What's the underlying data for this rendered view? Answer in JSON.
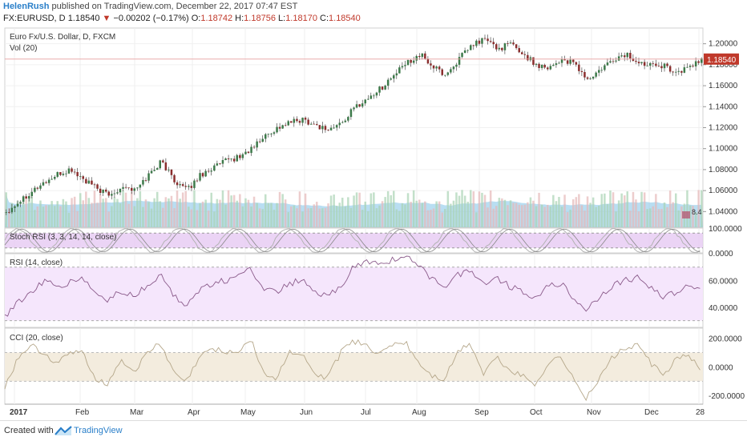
{
  "header": {
    "user": "HelenRush",
    "published": "published on TradingView.com, December 22, 2017 07:47 EST",
    "symbol": "FX:EURUSD, D",
    "last": "1.18540",
    "change": "−0.00202 (−0.17%)",
    "o_label": "O:",
    "o": "1.18742",
    "h_label": "H:",
    "h": "1.18756",
    "l_label": "L:",
    "l": "1.18170",
    "c_label": "C:",
    "c": "1.18540"
  },
  "footer": {
    "created": "Created with",
    "brand": "TradingView"
  },
  "colors": {
    "up": "#3d7a4a",
    "down": "#8b2e2e",
    "volume_up": "#a9d3b3",
    "volume_down": "#e6b8b8",
    "volume_ma": "#7fc3e8",
    "stoch": "#b3b3b3",
    "stoch_bg": "#e6c9f2",
    "rsi": "#8a5a8a",
    "rsi_bg": "#f5e6fc",
    "cci": "#b5a78a",
    "cci_bg": "#f3ecde",
    "last_price_tag": "#c0392b"
  },
  "chart_data": [
    {
      "type": "candlestick",
      "title": "Euro Fx/U.S. Dollar, D, FXCM",
      "subtitle": "Vol (20)",
      "ylim": [
        1.025,
        1.215
      ],
      "yticks": [
        "1.20000",
        "1.18000",
        "1.16000",
        "1.14000",
        "1.12000",
        "1.10000",
        "1.08000",
        "1.06000",
        "1.04000"
      ],
      "last_price_label": "1.18540",
      "vol_badge": "8.4",
      "x": [
        "2017",
        "Feb",
        "Mar",
        "Apr",
        "May",
        "Jun",
        "Jul",
        "Aug",
        "Sep",
        "Oct",
        "Nov",
        "Dec",
        "28"
      ],
      "close_path": [
        1.04,
        1.05,
        1.06,
        1.068,
        1.075,
        1.08,
        1.07,
        1.062,
        1.055,
        1.065,
        1.06,
        1.075,
        1.088,
        1.07,
        1.06,
        1.075,
        1.082,
        1.088,
        1.092,
        1.1,
        1.112,
        1.12,
        1.125,
        1.128,
        1.122,
        1.118,
        1.125,
        1.14,
        1.148,
        1.158,
        1.17,
        1.182,
        1.19,
        1.178,
        1.17,
        1.185,
        1.198,
        1.205,
        1.195,
        1.2,
        1.19,
        1.18,
        1.178,
        1.185,
        1.18,
        1.165,
        1.175,
        1.185,
        1.19,
        1.18,
        1.183,
        1.178,
        1.172,
        1.18,
        1.185
      ],
      "volume": {
        "values_relative": "approx",
        "ma_period": 20
      }
    },
    {
      "type": "line",
      "title": "Stoch RSI (3, 3, 14, 14, close)",
      "ylim": [
        0,
        100
      ],
      "yticks": [
        "100.0000",
        "0.0000"
      ],
      "levels": [
        80,
        20
      ]
    },
    {
      "type": "line",
      "title": "RSI (14, close)",
      "ylim": [
        25,
        80
      ],
      "yticks": [
        "60.0000",
        "40.0000"
      ],
      "levels": [
        70,
        30
      ],
      "values": [
        32,
        44,
        50,
        60,
        55,
        58,
        62,
        50,
        45,
        52,
        48,
        56,
        64,
        50,
        42,
        52,
        58,
        60,
        62,
        68,
        55,
        50,
        58,
        60,
        50,
        48,
        56,
        70,
        74,
        72,
        76,
        78,
        70,
        62,
        56,
        64,
        68,
        58,
        62,
        56,
        52,
        48,
        55,
        58,
        46,
        38,
        48,
        56,
        60,
        62,
        54,
        48,
        52,
        56,
        55
      ]
    },
    {
      "type": "line",
      "title": "CCI (20, close)",
      "ylim": [
        -260,
        270
      ],
      "yticks": [
        "200.0000",
        "0.0000",
        "-200.0000"
      ],
      "levels": [
        100,
        -100
      ],
      "values": [
        -150,
        60,
        150,
        100,
        20,
        90,
        110,
        -80,
        -120,
        60,
        -40,
        90,
        170,
        -30,
        -110,
        60,
        130,
        110,
        100,
        200,
        -40,
        -90,
        110,
        80,
        -60,
        -70,
        100,
        180,
        150,
        80,
        160,
        170,
        30,
        -60,
        -90,
        100,
        170,
        -50,
        70,
        -20,
        -60,
        -120,
        20,
        80,
        -90,
        -220,
        -80,
        70,
        130,
        150,
        20,
        -60,
        60,
        80,
        -60
      ]
    }
  ]
}
